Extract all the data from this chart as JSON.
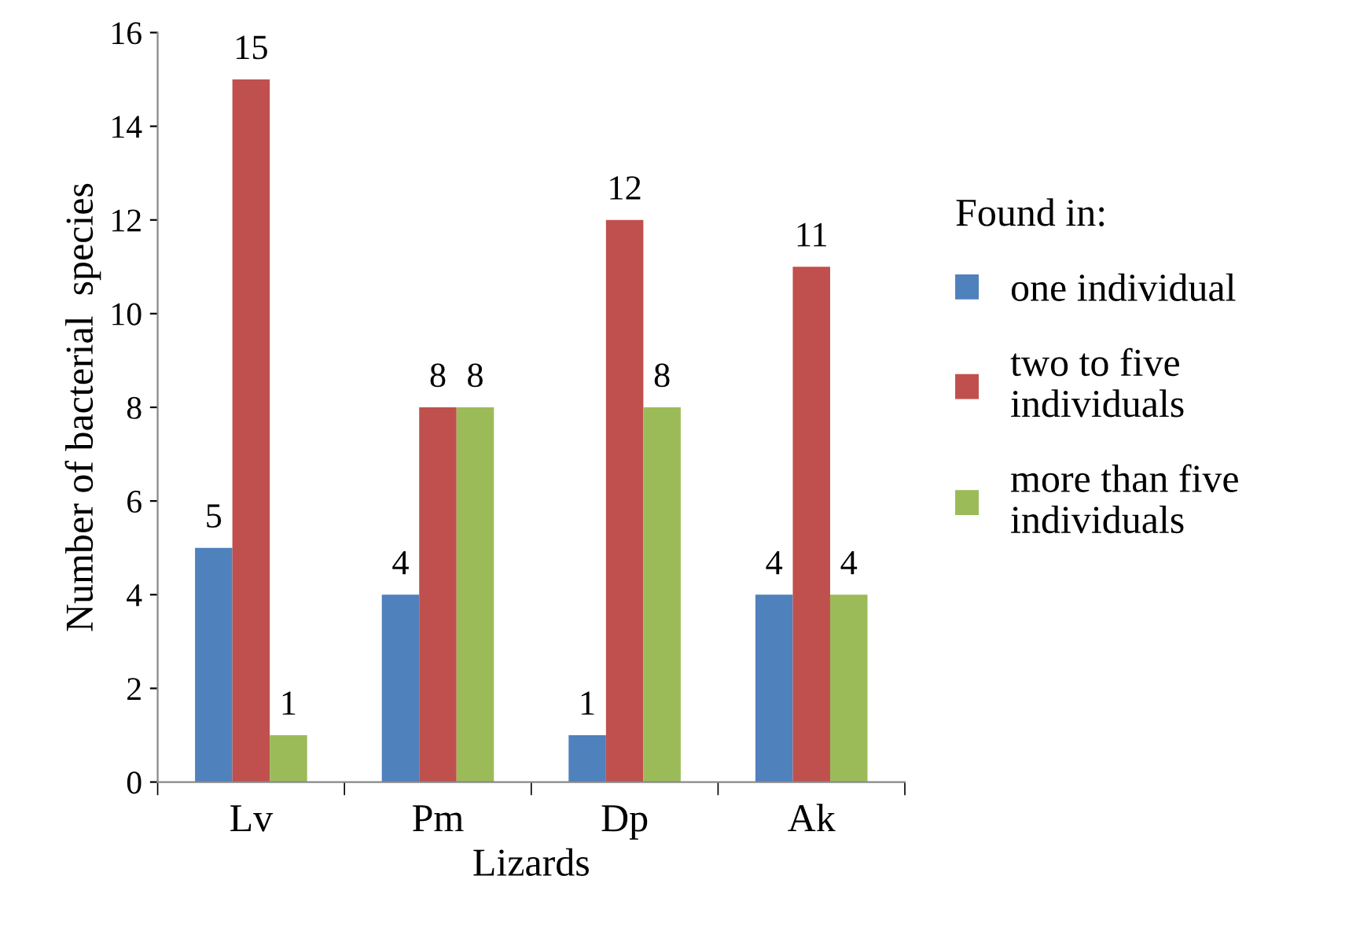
{
  "chart_data": {
    "type": "bar",
    "xlabel": "Lizards",
    "ylabel": "Number of bacterial  species",
    "legend_title": "Found in:",
    "categories": [
      "Lv",
      "Pm",
      "Dp",
      "Ak"
    ],
    "series": [
      {
        "name": "one individual",
        "color": "#4f81bd",
        "values": [
          5,
          4,
          1,
          4
        ]
      },
      {
        "name": "two to five individuals",
        "color": "#c0504d",
        "values": [
          15,
          8,
          12,
          11
        ]
      },
      {
        "name": "more than five individuals",
        "color": "#9bbb59",
        "values": [
          1,
          8,
          8,
          4
        ]
      }
    ],
    "ylim": [
      0,
      16
    ],
    "yticks": [
      0,
      2,
      4,
      6,
      8,
      10,
      12,
      14,
      16
    ],
    "data_labels": true,
    "grid": false,
    "legend": "right"
  }
}
